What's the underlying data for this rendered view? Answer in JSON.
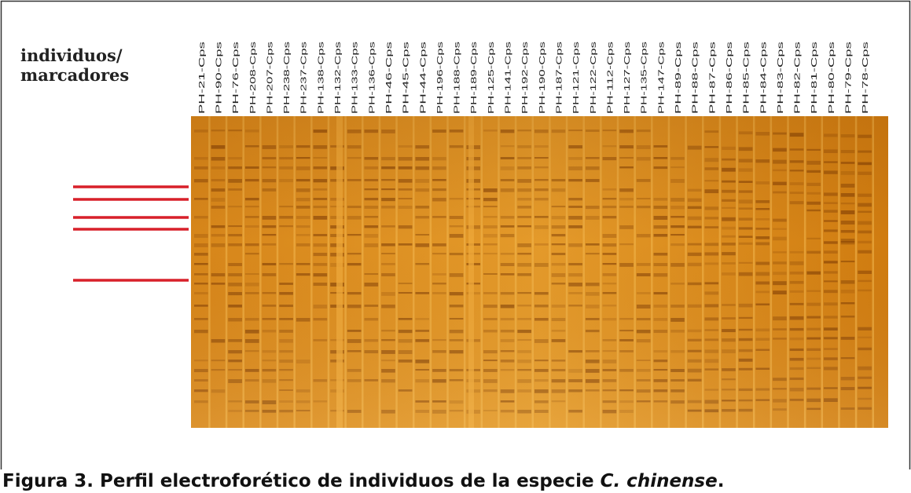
{
  "figure": {
    "row_label": [
      "individuos/",
      "marcadores"
    ],
    "lanes": [
      "PH-21-Cps",
      "PH-90-Cps",
      "PH-76-Cps",
      "PH-208-Cps",
      "PH-207-Cps",
      "PH-238-Cps",
      "PH-237-Cps",
      "PH-138-Cps",
      "PH-132-Cps",
      "PH-133-Cps",
      "PH-136-Cps",
      "PH-46-Cps",
      "PH-45-Cps",
      "PH-44-Cps",
      "PH-196-Cps",
      "PH-188-Cps",
      "PH-189-Cps",
      "PH-125-Cps",
      "PH-141-Cps",
      "PH-192-Cps",
      "PH-190-Cps",
      "PH-187-Cps",
      "PH-121-Cps",
      "PH-122-Cps",
      "PH-112-Cps",
      "PH-127-Cps",
      "PH-135-Cps",
      "PH-147-Cps",
      "PH-89-Cps",
      "PH-88-Cps",
      "PH-87-Cps",
      "PH-86-Cps",
      "PH-85-Cps",
      "PH-84-Cps",
      "PH-83-Cps",
      "PH-82-Cps",
      "PH-81-Cps",
      "PH-80-Cps",
      "PH-79-Cps",
      "PH-78-Cps"
    ],
    "caption": {
      "prefix": "Figura 3. Perfil electroforético de individuos de la especie ",
      "species": "C. chinense",
      "suffix": "."
    }
  }
}
